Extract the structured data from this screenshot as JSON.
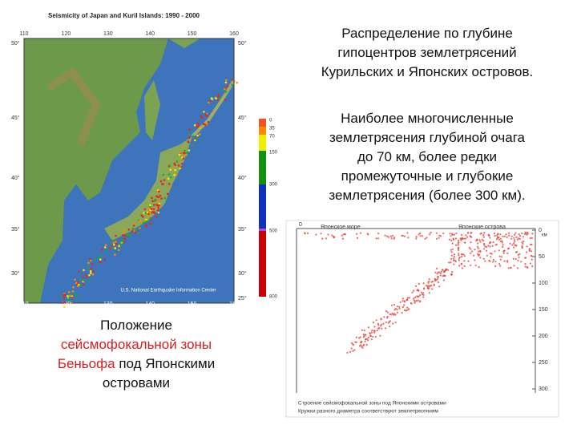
{
  "map": {
    "title": "Seismicity of Japan and Kuril Islands: 1990 - 2000",
    "lon_labels": [
      "110",
      "120",
      "130",
      "140",
      "150",
      "160"
    ],
    "lat_labels_left": [
      "50°",
      "45°",
      "40°",
      "35°",
      "30°"
    ],
    "lat_labels_right": [
      "50°",
      "45°",
      "40°",
      "35°",
      "30°",
      "25°"
    ],
    "depth_legend": [
      "0",
      "35",
      "70",
      "150",
      "300",
      "500",
      "800"
    ],
    "credit": "U.S. National Earthquake Information Center"
  },
  "intro": [
    "Распределение по глубине",
    "гипоцентров землетрясений",
    "Курильских  и Японских островов."
  ],
  "summary": [
    "Наиболее многочисленные",
    "землетрясения глубиной очага",
    "до 70 км, более редки",
    "промежуточные и глубокие",
    "землетрясения (более 300 км)."
  ],
  "caption": {
    "line1": "Положение",
    "red1": "сейсмофокальной зоны",
    "red2": "Беньофа",
    "rest": "под Японскими",
    "line4": "островами"
  },
  "section": {
    "left_label": "Японское море",
    "right_label": "Японские острова",
    "left_zero": "0",
    "depth_unit": "км",
    "depth_ticks": [
      "0",
      "50",
      "100",
      "150",
      "200",
      "250",
      "300"
    ],
    "notes": [
      "Строение сейсмофокальной зоны под Японскими островами",
      "Кружки разного диаметра соответствуют землетрясениям"
    ]
  }
}
